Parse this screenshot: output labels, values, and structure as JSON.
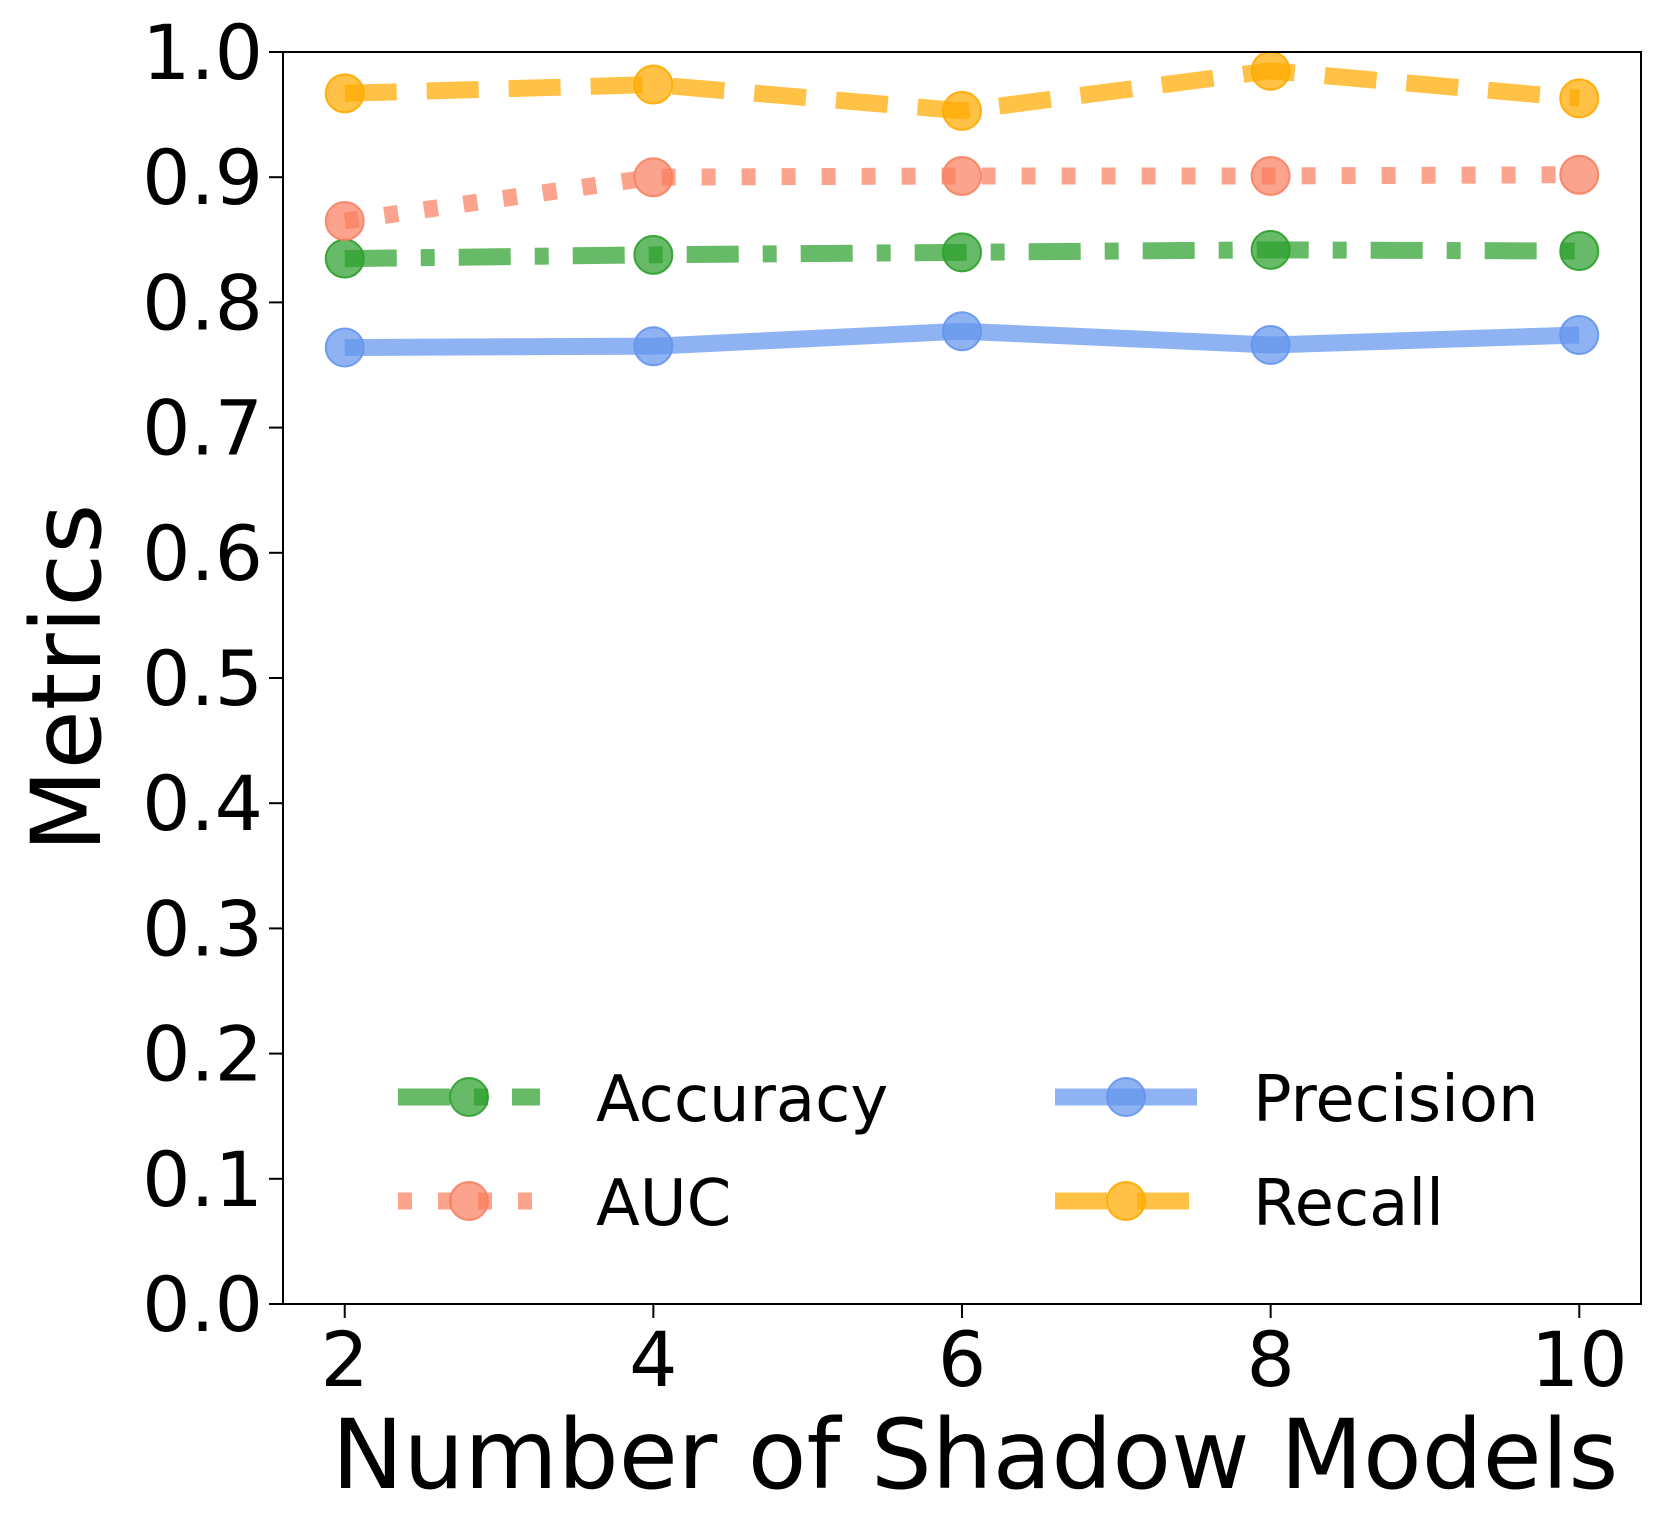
{
  "chart_data": {
    "type": "line",
    "xlabel": "Number of Shadow Models",
    "ylabel": "Metrics",
    "x": [
      2,
      4,
      6,
      8,
      10
    ],
    "xticks": [
      "2",
      "4",
      "6",
      "8",
      "10"
    ],
    "yticks": [
      "0.0",
      "0.1",
      "0.2",
      "0.3",
      "0.4",
      "0.5",
      "0.6",
      "0.7",
      "0.8",
      "0.9",
      "1.0"
    ],
    "ylim": [
      0,
      1.0
    ],
    "xlim": [
      1.6,
      10.4
    ],
    "grid": false,
    "legend_position": "lower-right, two columns",
    "series": [
      {
        "name": "Accuracy",
        "values": [
          0.835,
          0.838,
          0.84,
          0.842,
          0.841
        ],
        "color": "#2ca02c",
        "style": "dashdot"
      },
      {
        "name": "AUC",
        "values": [
          0.865,
          0.9,
          0.901,
          0.901,
          0.902
        ],
        "color": "#fa8060",
        "style": "dotted"
      },
      {
        "name": "Precision",
        "values": [
          0.764,
          0.765,
          0.777,
          0.766,
          0.774
        ],
        "color": "#6495ed",
        "style": "solid"
      },
      {
        "name": "Recall",
        "values": [
          0.967,
          0.974,
          0.953,
          0.985,
          0.963
        ],
        "color": "#ffaa00",
        "style": "dashed"
      }
    ]
  }
}
